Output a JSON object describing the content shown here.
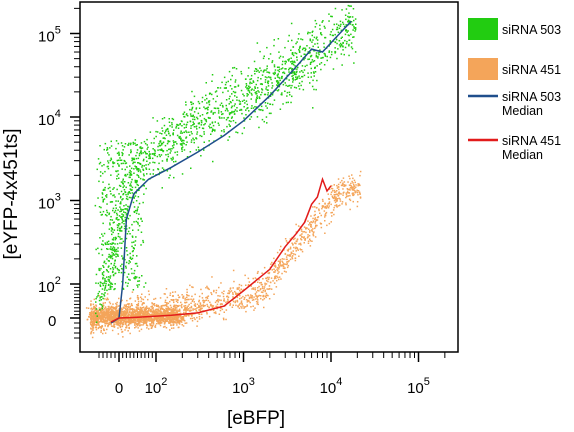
{
  "chart_data": {
    "type": "scatter",
    "xlabel": "[eBFP]",
    "ylabel": "[eYFP-4x451ts]",
    "x_scale": "biexponential",
    "y_scale": "biexponential",
    "xlim": [
      -60,
      150000
    ],
    "ylim": [
      -40,
      200000
    ],
    "x_ticks": [
      {
        "value": 0,
        "base": "0",
        "exp": ""
      },
      {
        "value": 100,
        "base": "10",
        "exp": "2"
      },
      {
        "value": 1000,
        "base": "10",
        "exp": "3"
      },
      {
        "value": 10000,
        "base": "10",
        "exp": "4"
      },
      {
        "value": 100000,
        "base": "10",
        "exp": "5"
      }
    ],
    "y_ticks": [
      {
        "value": 0,
        "base": "0",
        "exp": ""
      },
      {
        "value": 100,
        "base": "10",
        "exp": "2"
      },
      {
        "value": 1000,
        "base": "10",
        "exp": "3"
      },
      {
        "value": 10000,
        "base": "10",
        "exp": "4"
      },
      {
        "value": 100000,
        "base": "10",
        "exp": "5"
      }
    ],
    "grid": false,
    "legend_position": "right",
    "legend": [
      {
        "label": "siRNA 503",
        "kind": "swatch",
        "color": "#22cc11"
      },
      {
        "label": "siRNA 451",
        "kind": "swatch",
        "color": "#f4a55a"
      },
      {
        "label": "siRNA 503 Median",
        "kind": "line",
        "color": "#1f4e8c"
      },
      {
        "label": "siRNA 451 Median",
        "kind": "line",
        "color": "#e21b1b"
      }
    ],
    "series": [
      {
        "name": "siRNA 503",
        "kind": "scatter",
        "color": "#22cc11",
        "x_range": [
          -60,
          20000
        ],
        "y_range": [
          -30,
          150000
        ],
        "description_trend": "rising"
      },
      {
        "name": "siRNA 451",
        "kind": "scatter",
        "color": "#f4a55a",
        "x_range": [
          -60,
          15000
        ],
        "y_range": [
          -30,
          2000
        ],
        "description_trend": "rising"
      },
      {
        "name": "siRNA 503 Median",
        "kind": "line",
        "color": "#1f4e8c",
        "x": [
          -20,
          0,
          10,
          20,
          40,
          80,
          150,
          300,
          600,
          1000,
          2000,
          4000,
          6000,
          8000,
          12000,
          17000
        ],
        "y": [
          -10,
          0,
          100,
          600,
          1200,
          1800,
          2500,
          3800,
          6000,
          9000,
          18000,
          40000,
          65000,
          60000,
          95000,
          140000
        ]
      },
      {
        "name": "siRNA 451 Median",
        "kind": "line",
        "color": "#e21b1b",
        "x": [
          -20,
          0,
          50,
          150,
          300,
          600,
          1000,
          2000,
          3000,
          4000,
          5000,
          6000,
          7000,
          8000,
          9000,
          10000
        ],
        "y": [
          -8,
          0,
          2,
          8,
          15,
          35,
          80,
          150,
          280,
          400,
          550,
          900,
          1100,
          1800,
          1300,
          1500
        ]
      }
    ]
  }
}
